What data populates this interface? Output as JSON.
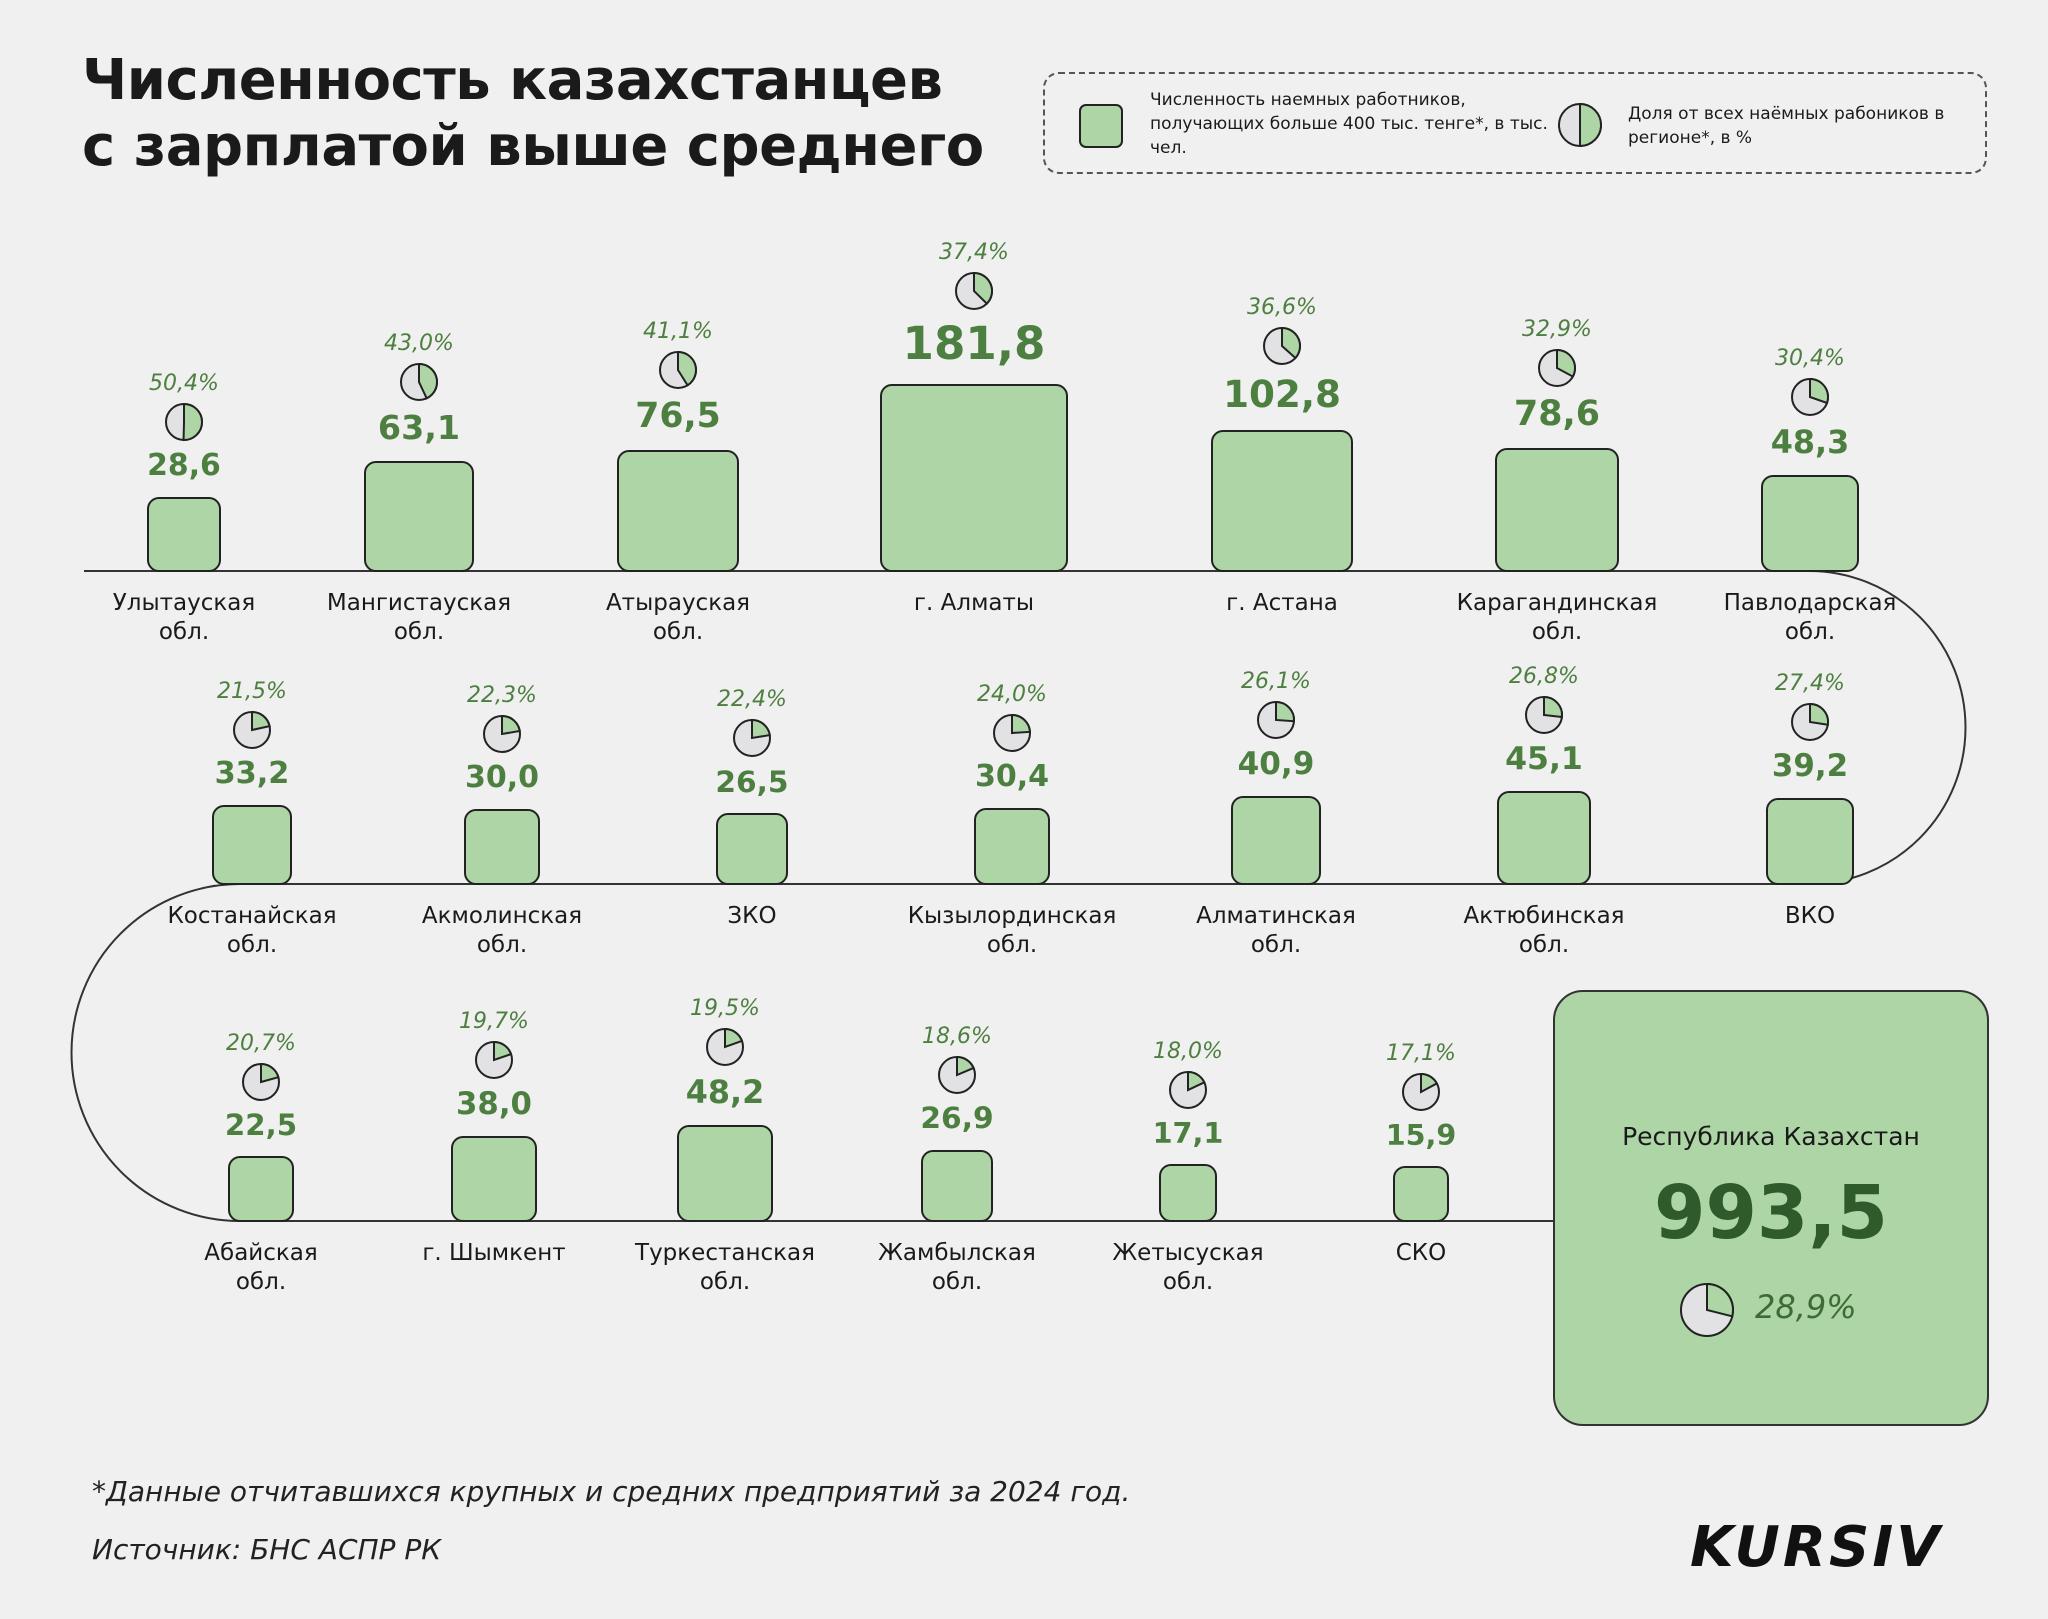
{
  "title_line1": "Численность казахстанцев",
  "title_line2": "с зарплатой выше среднего",
  "legend": {
    "count_label": "Численность наемных работников, получающих больше 400 тыс. тенге*, в тыс. чел.",
    "share_label": "Доля от всех наёмных рабоников в регионе*, в %"
  },
  "colors": {
    "box": "#aed5a6",
    "value": "#4d8040",
    "pie_bg": "#e2e2e4"
  },
  "chart_data": {
    "type": "bar",
    "title": "Численность казахстанцев с зарплатой выше среднего",
    "unit": "тыс. чел.",
    "share_unit": "%",
    "rows": [
      [
        {
          "name": "Улытауская обл.",
          "value": 28.6,
          "value_label": "28,6",
          "share": 50.4,
          "share_label": "50,4%"
        },
        {
          "name": "Мангистауская обл.",
          "value": 63.1,
          "value_label": "63,1",
          "share": 43.0,
          "share_label": "43,0%"
        },
        {
          "name": "Атырауская обл.",
          "value": 76.5,
          "value_label": "76,5",
          "share": 41.1,
          "share_label": "41,1%"
        },
        {
          "name": "г. Алматы",
          "value": 181.8,
          "value_label": "181,8",
          "share": 37.4,
          "share_label": "37,4%"
        },
        {
          "name": "г. Астана",
          "value": 102.8,
          "value_label": "102,8",
          "share": 36.6,
          "share_label": "36,6%"
        },
        {
          "name": "Карагандинская обл.",
          "value": 78.6,
          "value_label": "78,6",
          "share": 32.9,
          "share_label": "32,9%"
        },
        {
          "name": "Павлодарская обл.",
          "value": 48.3,
          "value_label": "48,3",
          "share": 30.4,
          "share_label": "30,4%"
        }
      ],
      [
        {
          "name": "Костанайская обл.",
          "value": 33.2,
          "value_label": "33,2",
          "share": 21.5,
          "share_label": "21,5%"
        },
        {
          "name": "Акмолинская обл.",
          "value": 30.0,
          "value_label": "30,0",
          "share": 22.3,
          "share_label": "22,3%"
        },
        {
          "name": "ЗКО",
          "value": 26.5,
          "value_label": "26,5",
          "share": 22.4,
          "share_label": "22,4%"
        },
        {
          "name": "Кызылординская обл.",
          "value": 30.4,
          "value_label": "30,4",
          "share": 24.0,
          "share_label": "24,0%"
        },
        {
          "name": "Алматинская обл.",
          "value": 40.9,
          "value_label": "40,9",
          "share": 26.1,
          "share_label": "26,1%"
        },
        {
          "name": "Актюбинская обл.",
          "value": 45.1,
          "value_label": "45,1",
          "share": 26.8,
          "share_label": "26,8%"
        },
        {
          "name": "ВКО",
          "value": 39.2,
          "value_label": "39,2",
          "share": 27.4,
          "share_label": "27,4%"
        }
      ],
      [
        {
          "name": "Абайская обл.",
          "value": 22.5,
          "value_label": "22,5",
          "share": 20.7,
          "share_label": "20,7%"
        },
        {
          "name": "г. Шымкент",
          "value": 38.0,
          "value_label": "38,0",
          "share": 19.7,
          "share_label": "19,7%"
        },
        {
          "name": "Туркестанская обл.",
          "value": 48.2,
          "value_label": "48,2",
          "share": 19.5,
          "share_label": "19,5%"
        },
        {
          "name": "Жамбылская обл.",
          "value": 26.9,
          "value_label": "26,9",
          "share": 18.6,
          "share_label": "18,6%"
        },
        {
          "name": "Жетысуская обл.",
          "value": 17.1,
          "value_label": "17,1",
          "share": 18.0,
          "share_label": "18,0%"
        },
        {
          "name": "СКО",
          "value": 15.9,
          "value_label": "15,9",
          "share": 17.1,
          "share_label": "17,1%"
        }
      ]
    ],
    "total": {
      "name": "Республика Казахстан",
      "value": 993.5,
      "value_label": "993,5",
      "share": 28.9,
      "share_label": "28,9%"
    }
  },
  "footnote": "*Данные отчитавшихся крупных и средних предприятий за 2024 год.",
  "source": "Источник: БНС АСПР РК",
  "logo": "KURSIV"
}
